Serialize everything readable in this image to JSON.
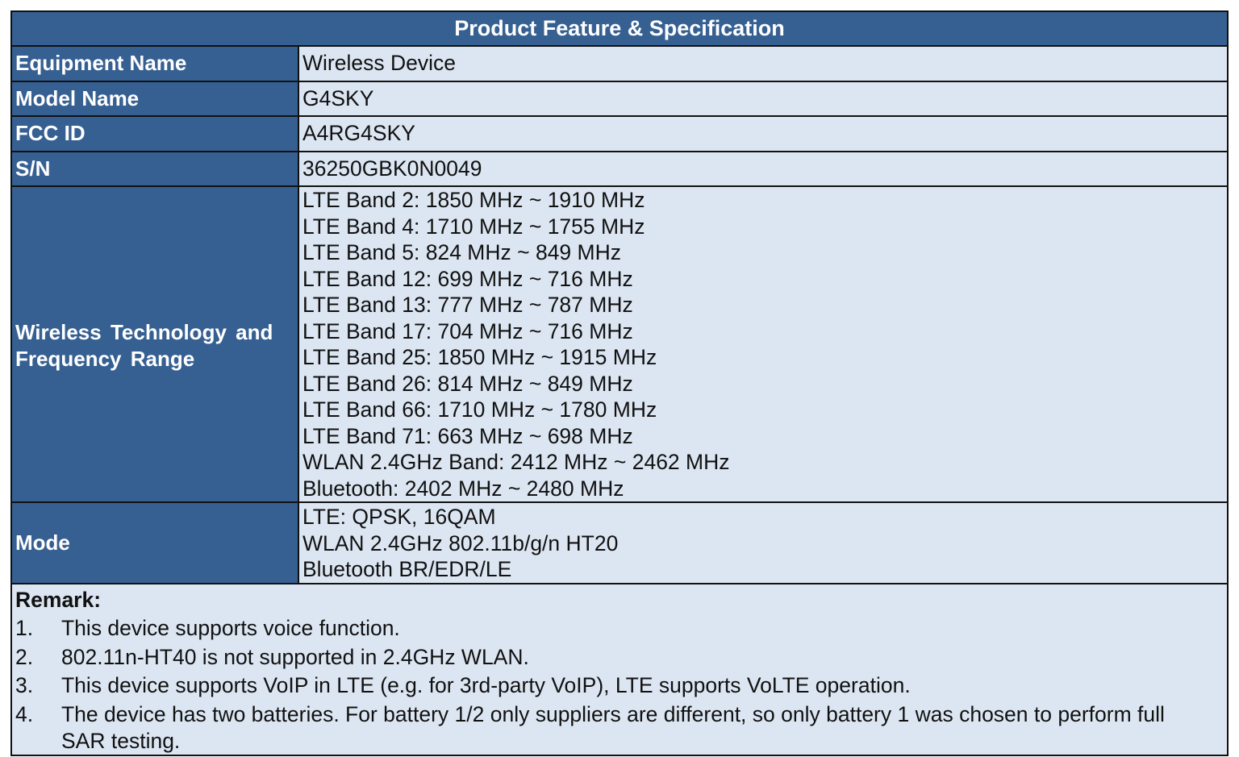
{
  "title": "Product Feature & Specification",
  "rows": [
    {
      "label": "Equipment Name",
      "value": "Wireless Device"
    },
    {
      "label": "Model Name",
      "value": "G4SKY"
    },
    {
      "label": "FCC ID",
      "value": "A4RG4SKY"
    },
    {
      "label": "S/N",
      "value": "36250GBK0N0049"
    }
  ],
  "frequency": {
    "label": "Wireless Technology and Frequency Range",
    "values": [
      "LTE Band 2: 1850 MHz ~ 1910 MHz",
      "LTE Band 4: 1710 MHz ~ 1755 MHz",
      "LTE Band 5: 824 MHz ~ 849 MHz",
      "LTE Band 12: 699 MHz ~ 716 MHz",
      "LTE Band 13: 777 MHz ~ 787 MHz",
      "LTE Band 17: 704 MHz ~ 716 MHz",
      "LTE Band 25: 1850 MHz ~ 1915 MHz",
      "LTE Band 26: 814 MHz ~ 849 MHz",
      "LTE Band 66: 1710 MHz ~ 1780 MHz",
      "LTE Band 71: 663 MHz ~ 698 MHz",
      "WLAN 2.4GHz Band: 2412 MHz ~ 2462 MHz",
      "Bluetooth: 2402 MHz ~ 2480 MHz"
    ]
  },
  "mode": {
    "label": "Mode",
    "values": [
      "LTE: QPSK, 16QAM",
      "WLAN 2.4GHz 802.11b/g/n HT20",
      "Bluetooth BR/EDR/LE"
    ]
  },
  "remark": {
    "title": "Remark:",
    "items": [
      {
        "num": "1.",
        "text": "This device supports voice function."
      },
      {
        "num": "2.",
        "text": "802.11n-HT40 is not supported in 2.4GHz WLAN."
      },
      {
        "num": "3.",
        "text": "This device supports VoIP in LTE (e.g. for 3rd-party VoIP), LTE supports VoLTE operation."
      },
      {
        "num": "4.",
        "text": "The device has two batteries. For battery 1/2 only suppliers are different, so only battery 1 was chosen to perform full SAR testing."
      }
    ]
  },
  "colors": {
    "header": "#366092",
    "cell": "#dce6f2",
    "border": "#111111"
  }
}
